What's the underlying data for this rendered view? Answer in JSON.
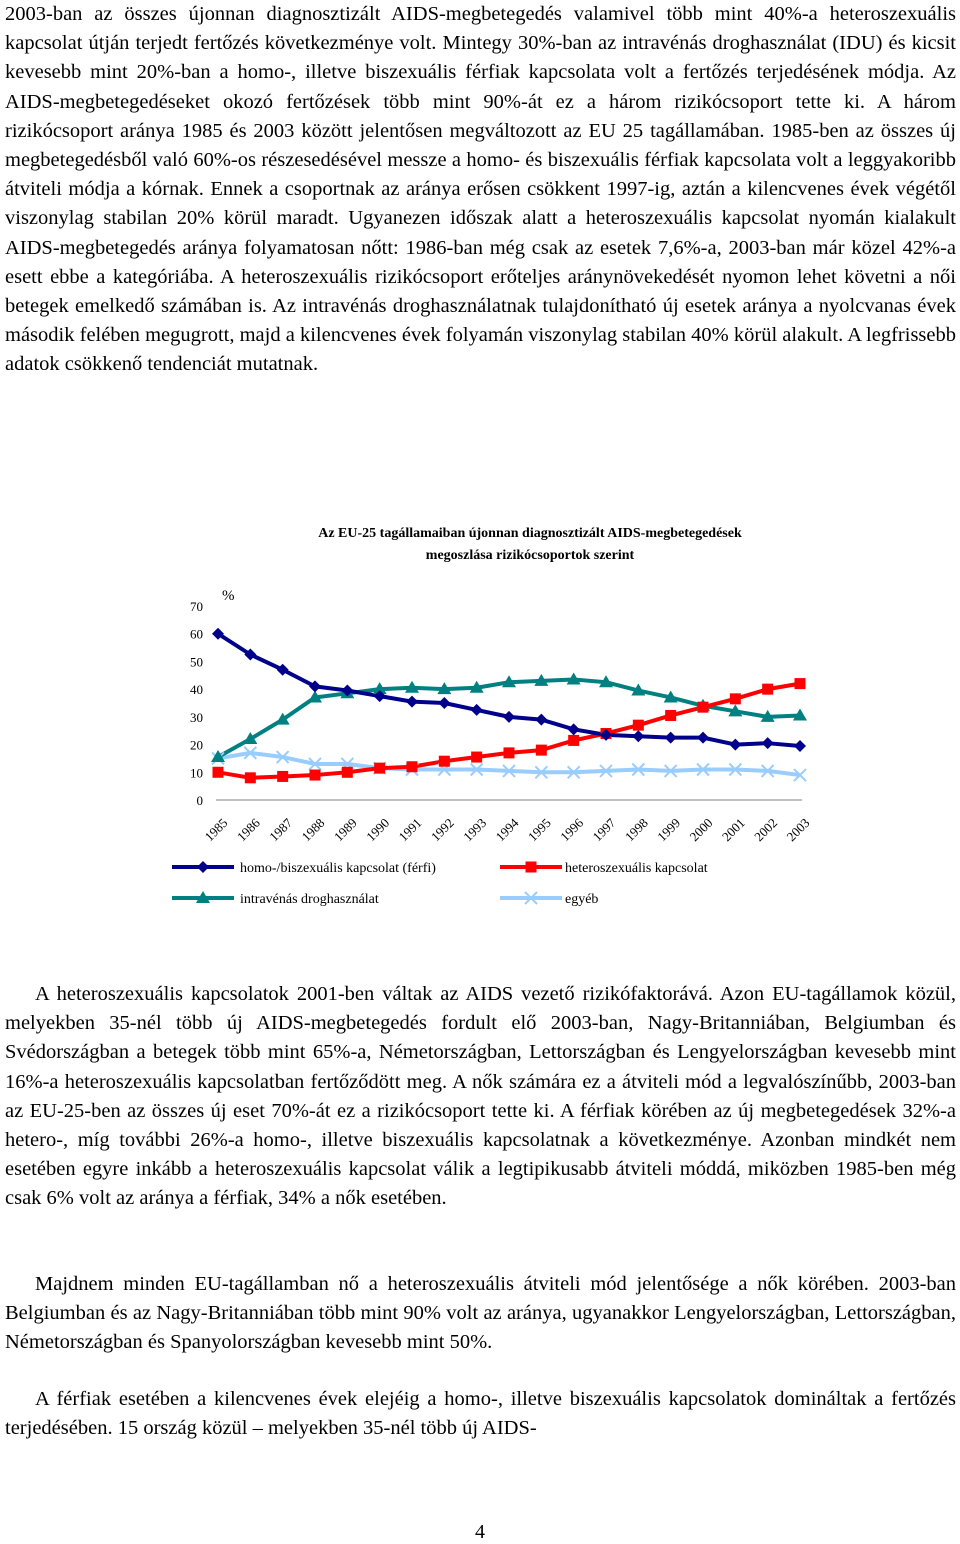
{
  "paragraphs": [
    "2003-ban az összes újonnan diagnosztizált AIDS-megbetegedés valamivel több mint 40%-a heteroszexuális kapcsolat útján terjedt fertőzés következménye volt. Mintegy 30%-ban az intravénás droghasználat (IDU) és kicsit kevesebb mint 20%-ban a homo-, illetve biszexuális férfiak kapcsolata volt a fertőzés terjedésének módja. Az AIDS-megbetegedéseket okozó fertőzések több mint 90%-át ez a három rizikócsoport tette ki. A három rizikócsoport aránya 1985 és 2003 között jelentősen megváltozott az EU 25 tagállamában. 1985-ben az összes új megbetegedésből való 60%-os részesedésével messze a homo- és biszexuális férfiak kapcsolata volt a leggyakoribb átviteli módja a kórnak. Ennek a csoportnak az aránya erősen csökkent 1997-ig, aztán a kilencvenes évek végétől viszonylag stabilan 20% körül maradt. Ugyanezen időszak alatt a heteroszexuális kapcsolat nyomán kialakult AIDS-megbetegedés aránya folyamatosan nőtt: 1986-ban még csak az esetek 7,6%-a, 2003-ban már közel 42%-a esett ebbe a kategóriába. A heteroszexuális rizikócsoport erőteljes aránynövekedését nyomon lehet követni a női betegek emelkedő számában is. Az intravénás droghasználatnak tulajdonítható új esetek aránya a nyolcvanas évek második felében megugrott, majd a kilencvenes évek folyamán viszonylag stabilan 40% körül alakult. A legfrissebb adatok csökkenő tendenciát mutatnak.",
    "A heteroszexuális kapcsolatok 2001-ben váltak az AIDS vezető rizikófaktorává. Azon EU-tagállamok közül, melyekben 35-nél több új AIDS-megbetegedés fordult elő 2003-ban, Nagy-Britanniában, Belgiumban és Svédországban a betegek több mint 65%-a, Németországban, Lettországban és Lengyelországban kevesebb mint 16%-a heteroszexuális kapcsolatban fertőződött meg. A nők számára ez a átviteli mód a legvalószínűbb, 2003-ban az EU-25-ben az összes új eset 70%-át ez a rizikócsoport tette ki. A férfiak körében az új megbetegedések 32%-a hetero-, míg további 26%-a homo-, illetve biszexuális kapcsolatnak a következménye. Azonban mindkét nem esetében egyre inkább a heteroszexuális kapcsolat válik a legtipikusabb átviteli móddá, miközben 1985-ben még csak 6% volt az aránya a férfiak, 34% a nők esetében.",
    "Majdnem minden EU-tagállamban nő a heteroszexuális átviteli mód jelentősége a nők körében. 2003-ban Belgiumban és az Nagy-Britanniában több mint 90% volt az aránya, ugyanakkor Lengyelországban, Lettországban, Németországban és Spanyolországban kevesebb mint 50%.",
    "A férfiak esetében a kilencvenes évek elejéig a homo-, illetve biszexuális kapcsolatok domináltak a fertőzés terjedésében. 15 ország közül – melyekben 35-nél több új AIDS-"
  ],
  "page_number": "4",
  "chart_data": {
    "type": "line",
    "title": "Az EU-25 tagállamaiban újonnan diagnosztizált AIDS-megbetegedések megoszlása rizikócsoportok szerint",
    "title_lines": [
      "Az EU-25 tagállamaiban újonnan diagnosztizált AIDS-megbetegedések",
      "megoszlása rizikócsoportok szerint"
    ],
    "ylabel": "%",
    "xlabel": "",
    "ylim": [
      0,
      70
    ],
    "yticks": [
      "0",
      "10",
      "20",
      "30",
      "40",
      "50",
      "60",
      "70"
    ],
    "categories": [
      "1985",
      "1986",
      "1987",
      "1988",
      "1989",
      "1990",
      "1991",
      "1992",
      "1993",
      "1994",
      "1995",
      "1996",
      "1997",
      "1998",
      "1999",
      "2000",
      "2001",
      "2002",
      "2003"
    ],
    "grid": false,
    "legend_position": "bottom",
    "series": [
      {
        "name": "homo-/biszexuális kapcsolat (férfi)",
        "color": "#00008B",
        "marker": "diamond",
        "values": [
          60,
          52.5,
          47,
          41,
          39.5,
          37.5,
          35.5,
          35,
          32.5,
          30,
          29,
          25.5,
          23.5,
          23,
          22.5,
          22.5,
          20,
          20.5,
          19.5
        ]
      },
      {
        "name": "heteroszexuális kapcsolat",
        "color": "#FF0000",
        "marker": "square",
        "values": [
          10,
          8,
          8.5,
          9,
          10,
          11.5,
          12,
          14,
          15.5,
          17,
          18,
          21.5,
          24,
          27,
          30.5,
          33.5,
          36.5,
          40,
          42
        ]
      },
      {
        "name": "intravénás droghasználat",
        "color": "#008080",
        "marker": "triangle",
        "values": [
          15.5,
          22,
          29,
          37,
          38.5,
          40,
          40.5,
          40,
          40.5,
          42.5,
          43,
          43.5,
          42.5,
          39.5,
          37,
          34,
          32,
          30,
          30.5
        ]
      },
      {
        "name": "egyéb",
        "color": "#99CCFF",
        "marker": "x",
        "values": [
          15,
          17,
          15.5,
          13,
          13,
          11.5,
          11,
          11,
          11,
          10.5,
          10,
          10,
          10.5,
          11,
          10.5,
          11,
          11,
          10.5,
          9
        ]
      }
    ]
  }
}
